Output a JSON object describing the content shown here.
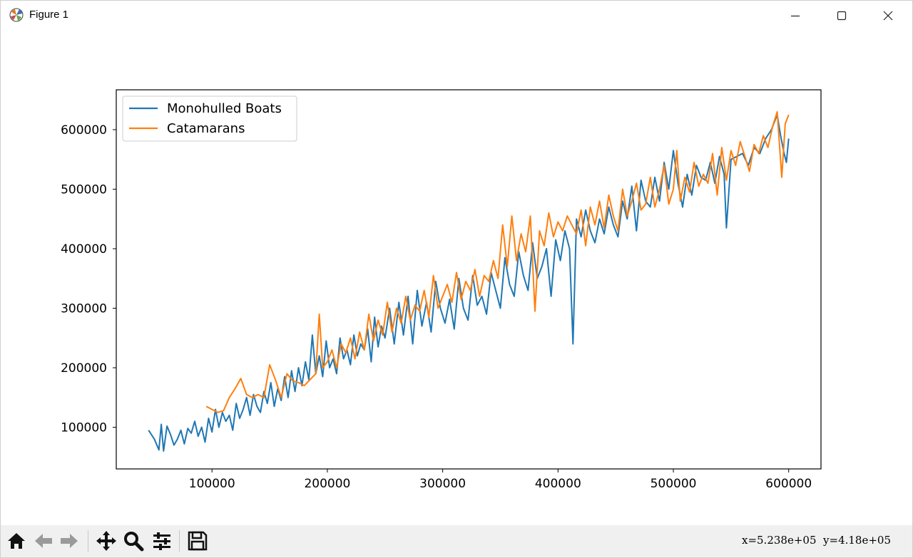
{
  "window": {
    "title": "Figure 1"
  },
  "icons": {
    "app": "matplotlib-logo-icon",
    "minimize": "minimize-icon",
    "maximize": "maximize-icon",
    "close": "close-icon",
    "home": "home-icon",
    "back": "arrow-left-icon",
    "forward": "arrow-right-icon",
    "pan": "move-icon",
    "zoom": "magnifier-icon",
    "configure": "sliders-icon",
    "save": "floppy-disk-icon"
  },
  "toolbar": {
    "coords": "x=5.238e+05  y=4.18e+05"
  },
  "colors": {
    "monohull": "#1f77b4",
    "catamaran": "#ff7f0e"
  },
  "chart_data": {
    "type": "line",
    "title": "",
    "xlabel": "",
    "ylabel": "",
    "xlim": [
      17000,
      628000
    ],
    "ylim": [
      30000,
      667000
    ],
    "xticks": [
      100000,
      200000,
      300000,
      400000,
      500000,
      600000
    ],
    "yticks": [
      100000,
      200000,
      300000,
      400000,
      500000,
      600000
    ],
    "xtick_labels": [
      "100000",
      "200000",
      "300000",
      "400000",
      "500000",
      "600000"
    ],
    "ytick_labels": [
      "100000",
      "200000",
      "300000",
      "400000",
      "500000",
      "600000"
    ],
    "grid": false,
    "legend": "upper-left",
    "series": [
      {
        "name": "Monohulled Boats",
        "x": [
          45000,
          50000,
          54000,
          56000,
          58000,
          61000,
          64000,
          67000,
          70000,
          73000,
          76000,
          79000,
          82000,
          85000,
          88000,
          91000,
          94000,
          97000,
          100000,
          103000,
          106000,
          109000,
          112000,
          115000,
          118000,
          121000,
          124000,
          127000,
          130000,
          133000,
          136000,
          139000,
          142000,
          145000,
          148000,
          151000,
          154000,
          157000,
          160000,
          163000,
          166000,
          169000,
          172000,
          175000,
          178000,
          181000,
          184000,
          187000,
          190000,
          193000,
          196000,
          199000,
          202000,
          205000,
          208000,
          211000,
          214000,
          217000,
          220000,
          223000,
          226000,
          229000,
          232000,
          235000,
          238000,
          241000,
          244000,
          247000,
          250000,
          254000,
          258000,
          262000,
          266000,
          270000,
          274000,
          278000,
          282000,
          286000,
          290000,
          294000,
          298000,
          302000,
          306000,
          310000,
          314000,
          318000,
          322000,
          326000,
          330000,
          334000,
          338000,
          342000,
          346000,
          350000,
          354000,
          358000,
          362000,
          366000,
          370000,
          374000,
          378000,
          382000,
          386000,
          390000,
          394000,
          398000,
          402000,
          406000,
          410000,
          413000,
          416000,
          420000,
          424000,
          428000,
          432000,
          436000,
          440000,
          444000,
          448000,
          452000,
          456000,
          460000,
          464000,
          468000,
          472000,
          476000,
          480000,
          484000,
          488000,
          492000,
          496000,
          500000,
          504000,
          508000,
          512000,
          516000,
          520000,
          524000,
          528000,
          532000,
          536000,
          540000,
          544000,
          546000,
          550000,
          555000,
          560000,
          565000,
          570000,
          575000,
          580000,
          585000,
          590000,
          593000,
          596000,
          598000,
          600000
        ],
        "y": [
          95000,
          80000,
          62000,
          105000,
          60000,
          102000,
          88000,
          70000,
          80000,
          95000,
          72000,
          98000,
          90000,
          110000,
          85000,
          100000,
          75000,
          115000,
          92000,
          130000,
          100000,
          125000,
          110000,
          120000,
          95000,
          140000,
          115000,
          130000,
          150000,
          120000,
          155000,
          135000,
          125000,
          160000,
          140000,
          175000,
          135000,
          165000,
          145000,
          185000,
          150000,
          195000,
          160000,
          200000,
          170000,
          210000,
          180000,
          255000,
          190000,
          220000,
          185000,
          245000,
          200000,
          215000,
          190000,
          250000,
          215000,
          230000,
          205000,
          255000,
          220000,
          240000,
          230000,
          265000,
          210000,
          285000,
          235000,
          270000,
          250000,
          300000,
          240000,
          310000,
          255000,
          320000,
          240000,
          330000,
          270000,
          310000,
          260000,
          345000,
          300000,
          275000,
          315000,
          265000,
          350000,
          300000,
          280000,
          355000,
          305000,
          320000,
          290000,
          360000,
          330000,
          300000,
          385000,
          340000,
          320000,
          395000,
          355000,
          330000,
          410000,
          350000,
          370000,
          400000,
          320000,
          415000,
          380000,
          430000,
          400000,
          240000,
          450000,
          420000,
          465000,
          430000,
          410000,
          450000,
          425000,
          470000,
          440000,
          420000,
          480000,
          450000,
          505000,
          430000,
          515000,
          480000,
          470000,
          520000,
          480000,
          545000,
          500000,
          565000,
          510000,
          470000,
          525000,
          490000,
          540000,
          520000,
          515000,
          545000,
          510000,
          555000,
          525000,
          435000,
          550000,
          555000,
          560000,
          540000,
          570000,
          560000,
          585000,
          600000,
          625000,
          590000,
          560000,
          545000,
          585000
        ]
      },
      {
        "name": "Catamarans",
        "x": [
          95000,
          100000,
          105000,
          110000,
          115000,
          120000,
          125000,
          130000,
          135000,
          140000,
          145000,
          150000,
          155000,
          160000,
          165000,
          170000,
          175000,
          180000,
          185000,
          190000,
          193000,
          196000,
          200000,
          204000,
          208000,
          212000,
          216000,
          220000,
          224000,
          228000,
          232000,
          236000,
          240000,
          244000,
          248000,
          252000,
          256000,
          260000,
          264000,
          268000,
          272000,
          276000,
          280000,
          284000,
          288000,
          292000,
          296000,
          300000,
          304000,
          308000,
          312000,
          316000,
          320000,
          324000,
          328000,
          332000,
          336000,
          340000,
          344000,
          348000,
          352000,
          356000,
          360000,
          364000,
          368000,
          372000,
          376000,
          380000,
          384000,
          388000,
          392000,
          396000,
          400000,
          404000,
          408000,
          412000,
          416000,
          420000,
          424000,
          428000,
          432000,
          436000,
          440000,
          444000,
          448000,
          452000,
          456000,
          460000,
          464000,
          468000,
          472000,
          476000,
          480000,
          484000,
          488000,
          492000,
          496000,
          500000,
          503000,
          506000,
          510000,
          514000,
          518000,
          522000,
          526000,
          530000,
          534000,
          538000,
          542000,
          546000,
          550000,
          554000,
          558000,
          562000,
          566000,
          570000,
          574000,
          578000,
          582000,
          586000,
          590000,
          594000,
          597000,
          600000
        ],
        "y": [
          135000,
          130000,
          125000,
          128000,
          150000,
          165000,
          182000,
          155000,
          150000,
          155000,
          150000,
          205000,
          180000,
          150000,
          190000,
          178000,
          175000,
          170000,
          180000,
          190000,
          290000,
          200000,
          210000,
          230000,
          200000,
          240000,
          225000,
          250000,
          215000,
          260000,
          230000,
          290000,
          245000,
          280000,
          255000,
          310000,
          260000,
          300000,
          275000,
          320000,
          280000,
          305000,
          295000,
          330000,
          285000,
          355000,
          300000,
          320000,
          340000,
          310000,
          360000,
          315000,
          345000,
          330000,
          365000,
          320000,
          355000,
          345000,
          380000,
          350000,
          440000,
          370000,
          455000,
          380000,
          425000,
          395000,
          455000,
          295000,
          430000,
          405000,
          460000,
          420000,
          445000,
          430000,
          455000,
          440000,
          425000,
          465000,
          405000,
          470000,
          440000,
          480000,
          435000,
          490000,
          455000,
          430000,
          500000,
          455000,
          480000,
          510000,
          465000,
          475000,
          520000,
          470000,
          500000,
          540000,
          475000,
          500000,
          565000,
          480000,
          520000,
          495000,
          545000,
          505000,
          525000,
          510000,
          560000,
          490000,
          570000,
          515000,
          565000,
          540000,
          580000,
          555000,
          530000,
          575000,
          560000,
          590000,
          570000,
          605000,
          630000,
          520000,
          610000,
          625000
        ]
      }
    ]
  }
}
